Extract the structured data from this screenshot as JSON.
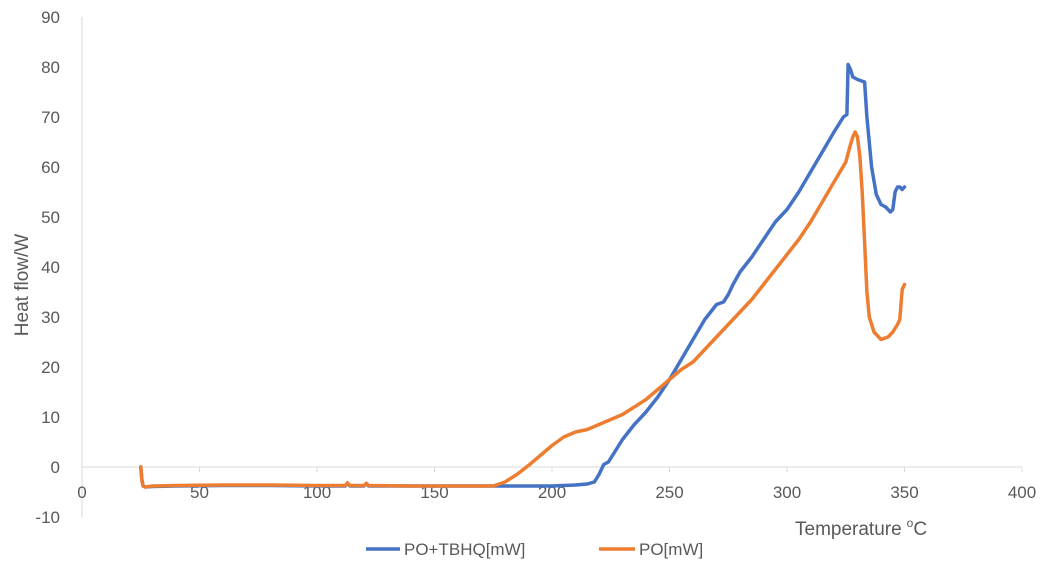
{
  "chart_data": {
    "type": "line",
    "title": "",
    "xlabel": "Temperature",
    "xlabel_sup": "o",
    "xlabel_unit": "C",
    "ylabel": "Heat flow/W",
    "xlim": [
      0,
      400
    ],
    "ylim": [
      -10,
      90
    ],
    "x_ticks": [
      0,
      50,
      100,
      150,
      200,
      250,
      300,
      350,
      400
    ],
    "y_ticks": [
      -10,
      0,
      10,
      20,
      30,
      40,
      50,
      60,
      70,
      80,
      90
    ],
    "grid": false,
    "legend_position": "bottom",
    "series": [
      {
        "name": "PO+TBHQ[mW]",
        "color": "#4472C4",
        "x": [
          25,
          25.5,
          26,
          27,
          30,
          40,
          60,
          80,
          100,
          112,
          113,
          114,
          120,
          121,
          122,
          140,
          160,
          180,
          200,
          210,
          215,
          218,
          220,
          222,
          224,
          226,
          228,
          230,
          235,
          240,
          245,
          250,
          255,
          260,
          265,
          270,
          273,
          275,
          277,
          280,
          285,
          290,
          295,
          300,
          305,
          310,
          315,
          320,
          324,
          325.5,
          326,
          327,
          328,
          330,
          333,
          334,
          336,
          338,
          340,
          342,
          344,
          345,
          346,
          347,
          348,
          349,
          350
        ],
        "y": [
          0,
          -2.5,
          -3.8,
          -4,
          -3.9,
          -3.8,
          -3.7,
          -3.7,
          -3.8,
          -3.8,
          -3.2,
          -3.8,
          -3.8,
          -3.3,
          -3.8,
          -3.8,
          -3.8,
          -3.8,
          -3.8,
          -3.6,
          -3.4,
          -3,
          -1.5,
          0.5,
          1,
          2.5,
          4,
          5.5,
          8.5,
          11,
          14,
          17.5,
          21.5,
          25.5,
          29.5,
          32.5,
          33,
          34.5,
          36.5,
          39,
          42,
          45.5,
          49,
          51.5,
          55,
          59,
          63,
          67,
          70,
          70.5,
          80.5,
          79.5,
          78,
          77.5,
          77,
          70,
          60,
          54.5,
          52.5,
          52,
          51,
          51.5,
          55,
          56,
          56,
          55.5,
          56
        ]
      },
      {
        "name": "PO[mW]",
        "color": "#ED7D31",
        "x": [
          25,
          25.5,
          26,
          27,
          30,
          40,
          60,
          80,
          100,
          112,
          113,
          114,
          120,
          121,
          122,
          140,
          160,
          175,
          180,
          185,
          190,
          195,
          200,
          205,
          210,
          215,
          220,
          225,
          230,
          235,
          240,
          245,
          250,
          255,
          260,
          265,
          270,
          275,
          280,
          285,
          290,
          295,
          300,
          305,
          310,
          315,
          320,
          325,
          327,
          328,
          329,
          330,
          331,
          332,
          333,
          334,
          335,
          337,
          340,
          343,
          345,
          347,
          348,
          349,
          350
        ],
        "y": [
          0,
          -2.8,
          -3.8,
          -4,
          -3.8,
          -3.7,
          -3.6,
          -3.6,
          -3.7,
          -3.7,
          -3.2,
          -3.7,
          -3.7,
          -3.3,
          -3.7,
          -3.8,
          -3.8,
          -3.8,
          -3,
          -1.5,
          0.3,
          2.3,
          4.3,
          6,
          7,
          7.5,
          8.5,
          9.5,
          10.5,
          12,
          13.5,
          15.5,
          17.5,
          19.5,
          21,
          23.5,
          26,
          28.5,
          31,
          33.5,
          36.5,
          39.5,
          42.5,
          45.5,
          49,
          53,
          57,
          61,
          64.5,
          66,
          67,
          66,
          62,
          55,
          45,
          35,
          30,
          27,
          25.5,
          26,
          27,
          28.5,
          29.5,
          35.5,
          36.5
        ]
      }
    ]
  }
}
